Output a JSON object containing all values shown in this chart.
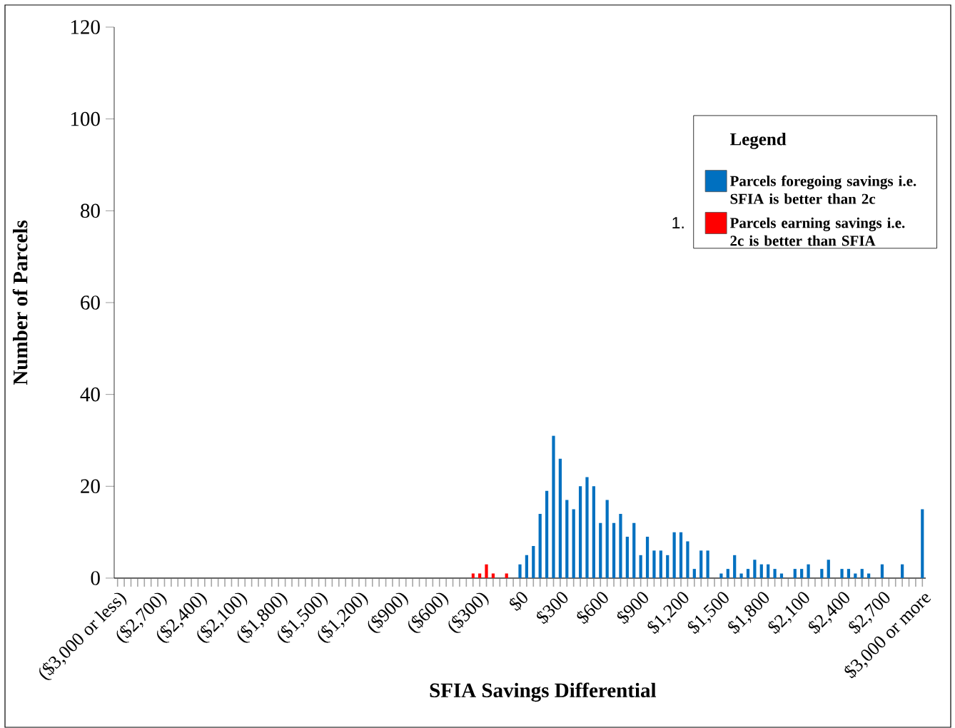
{
  "chart_data": {
    "type": "bar",
    "stacked": true,
    "xlabel": "SFIA Savings Differential",
    "ylabel": "Number of Parcels",
    "legend_title": "Legend",
    "legend": "top right",
    "categories": [
      "($3,000 or less)",
      null,
      null,
      null,
      null,
      null,
      "($2,700)",
      null,
      null,
      null,
      null,
      null,
      "($2,400)",
      null,
      null,
      null,
      null,
      null,
      "($2,100)",
      null,
      null,
      null,
      null,
      null,
      "($1,800)",
      null,
      null,
      null,
      null,
      null,
      "($1,500)",
      null,
      null,
      null,
      null,
      null,
      "($1,200)",
      null,
      null,
      null,
      null,
      null,
      "($900)",
      null,
      null,
      null,
      null,
      null,
      "($600)",
      null,
      null,
      null,
      null,
      null,
      "($300)",
      null,
      null,
      null,
      null,
      null,
      "$0",
      null,
      null,
      null,
      null,
      null,
      "$300",
      null,
      null,
      null,
      null,
      null,
      "$600",
      null,
      null,
      null,
      null,
      null,
      "$900",
      null,
      null,
      null,
      null,
      null,
      "$1,200",
      null,
      null,
      null,
      null,
      null,
      "$1,500",
      null,
      null,
      null,
      null,
      null,
      "$1,800",
      null,
      null,
      null,
      null,
      null,
      "$2,100",
      null,
      null,
      null,
      null,
      null,
      "$2,400",
      null,
      null,
      null,
      null,
      null,
      "$2,700",
      null,
      null,
      null,
      null,
      null,
      "$3,000 or more"
    ],
    "series": [
      {
        "name": "Parcels foregoing savings i.e. SFIA is better than 2c",
        "color": "#0070c0",
        "values": [
          0,
          0,
          0,
          0,
          0,
          0,
          0,
          0,
          0,
          0,
          0,
          0,
          0,
          0,
          0,
          0,
          0,
          0,
          0,
          0,
          0,
          0,
          0,
          0,
          0,
          0,
          0,
          0,
          0,
          0,
          0,
          0,
          0,
          0,
          0,
          0,
          0,
          0,
          0,
          0,
          0,
          0,
          0,
          0,
          0,
          0,
          0,
          0,
          0,
          0,
          0,
          0,
          0,
          0,
          0,
          0,
          0,
          0,
          0,
          0,
          3,
          5,
          7,
          14,
          19,
          31,
          26,
          17,
          15,
          20,
          22,
          20,
          12,
          17,
          12,
          14,
          9,
          12,
          5,
          9,
          6,
          6,
          5,
          10,
          10,
          8,
          2,
          6,
          6,
          0,
          1,
          2,
          5,
          1,
          2,
          4,
          3,
          3,
          2,
          1,
          0,
          2,
          2,
          3,
          0,
          2,
          4,
          0,
          2,
          2,
          1,
          2,
          1,
          0,
          3,
          0,
          0,
          3,
          0,
          0,
          15
        ]
      },
      {
        "name": "Parcels earning savings i.e. 2c is better than SFIA",
        "color": "#ff0000",
        "values": [
          0,
          0,
          0,
          0,
          0,
          0,
          0,
          0,
          0,
          0,
          0,
          0,
          0,
          0,
          0,
          0,
          0,
          0,
          0,
          0,
          0,
          0,
          0,
          0,
          0,
          0,
          0,
          0,
          0,
          0,
          0,
          0,
          0,
          0,
          0,
          0,
          0,
          0,
          0,
          0,
          0,
          0,
          0,
          0,
          0,
          0,
          0,
          0,
          0,
          0,
          0,
          0,
          0,
          1,
          1,
          3,
          1,
          0,
          1,
          0,
          0,
          0,
          0,
          0,
          0,
          0,
          0,
          0,
          0,
          0,
          0,
          0,
          0,
          0,
          0,
          0,
          0,
          0,
          0,
          0,
          0,
          0,
          0,
          0,
          0,
          0,
          0,
          0,
          0,
          0,
          0,
          0,
          0,
          0,
          0,
          0,
          0,
          0,
          0,
          0,
          0,
          0,
          0,
          0,
          0,
          0,
          0,
          0,
          0,
          0,
          0,
          0,
          0,
          0,
          0,
          0,
          0,
          0,
          0,
          0,
          0
        ]
      }
    ],
    "ylim": [
      0,
      120
    ],
    "yticks": [
      0,
      20,
      40,
      60,
      80,
      100,
      120
    ],
    "annotations": [
      "1."
    ]
  }
}
